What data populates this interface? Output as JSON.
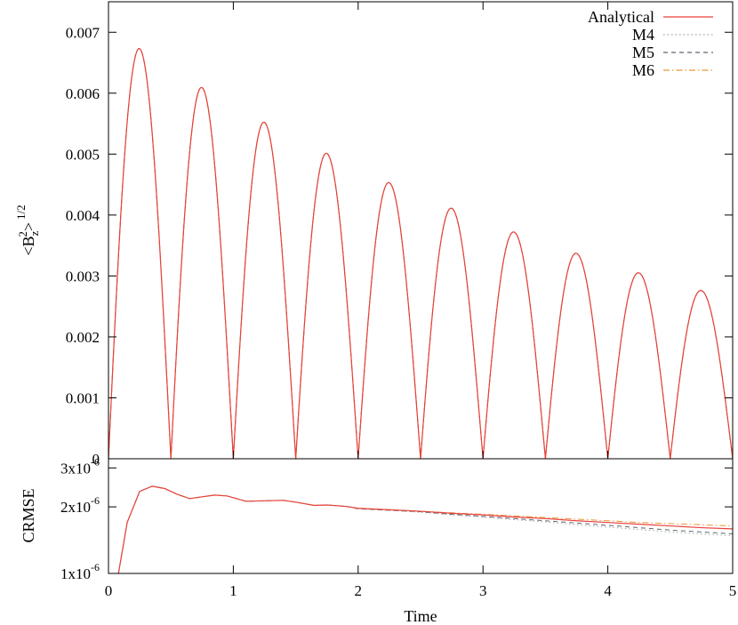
{
  "chart_data": [
    {
      "type": "line",
      "title": "",
      "xlabel": "",
      "ylabel": "<B_z^2>^1/2",
      "ylabel_parts": {
        "open": "<B",
        "sub": "z",
        "sup1": "2",
        "close": ">",
        "sup2": "1/2"
      },
      "xlim": [
        0,
        5
      ],
      "ylim": [
        0,
        0.0075
      ],
      "grid": false,
      "legend": "top-right",
      "y_ticks": [
        {
          "value": 0,
          "label": "0"
        },
        {
          "value": 0.001,
          "label": "0.001"
        },
        {
          "value": 0.002,
          "label": "0.002"
        },
        {
          "value": 0.003,
          "label": "0.003"
        },
        {
          "value": 0.004,
          "label": "0.004"
        },
        {
          "value": 0.005,
          "label": "0.005"
        },
        {
          "value": 0.006,
          "label": "0.006"
        },
        {
          "value": 0.007,
          "label": "0.007"
        }
      ],
      "model": {
        "form": "|A(t) * sin(2*pi*t)|",
        "amplitude_t": [
          0,
          0.25,
          0.75,
          1.25,
          1.75,
          2.25,
          2.75,
          3.25,
          3.75,
          4.25,
          4.75,
          5.0
        ],
        "amplitude_v": [
          0.007,
          0.00673,
          0.00609,
          0.00552,
          0.00501,
          0.00453,
          0.00411,
          0.00372,
          0.00337,
          0.00305,
          0.00276,
          0.00263
        ]
      },
      "peaks": {
        "x": [
          0.25,
          0.75,
          1.25,
          1.75,
          2.25,
          2.75,
          3.25,
          3.75,
          4.25,
          4.75
        ],
        "y": [
          0.00673,
          0.00609,
          0.00552,
          0.00501,
          0.00453,
          0.00411,
          0.00372,
          0.00337,
          0.00305,
          0.00276
        ]
      },
      "series": [
        {
          "name": "Analytical",
          "color": "#e8413a",
          "dash": "solid"
        },
        {
          "name": "M4",
          "color": "#9fa8a8",
          "dash": "dotted"
        },
        {
          "name": "M5",
          "color": "#5d6670",
          "dash": "dashed"
        },
        {
          "name": "M6",
          "color": "#e8963a",
          "dash": "dashdot"
        }
      ]
    },
    {
      "type": "line",
      "title": "",
      "xlabel": "Time",
      "ylabel": "CRMSE",
      "xlim": [
        0,
        5
      ],
      "ylim": [
        1e-06,
        3.3e-06
      ],
      "y_scale": "log",
      "grid": false,
      "x_ticks": [
        {
          "value": 0,
          "label": "0"
        },
        {
          "value": 1,
          "label": "1"
        },
        {
          "value": 2,
          "label": "2"
        },
        {
          "value": 3,
          "label": "3"
        },
        {
          "value": 4,
          "label": "4"
        },
        {
          "value": 5,
          "label": "5"
        }
      ],
      "y_ticks": [
        {
          "value": 1e-06,
          "mantissa": "1x10",
          "exponent": "-6"
        },
        {
          "value": 2e-06,
          "mantissa": "2x10",
          "exponent": "-6"
        },
        {
          "value": 3e-06,
          "mantissa": "3x10",
          "exponent": "-6"
        }
      ],
      "series": [
        {
          "name": "Analytical",
          "color": "#e8413a",
          "dash": "solid",
          "x": [
            0.08,
            0.15,
            0.25,
            0.35,
            0.45,
            0.55,
            0.65,
            0.75,
            0.85,
            0.95,
            1.1,
            1.25,
            1.4,
            1.5,
            1.65,
            1.75,
            1.9,
            2.0,
            2.25,
            2.5,
            2.75,
            3.0,
            3.25,
            3.5,
            3.75,
            4.0,
            4.25,
            4.5,
            4.75,
            5.0
          ],
          "y": [
            1e-06,
            1.7e-06,
            2.35e-06,
            2.48e-06,
            2.42e-06,
            2.28e-06,
            2.18e-06,
            2.22e-06,
            2.26e-06,
            2.24e-06,
            2.12e-06,
            2.13e-06,
            2.14e-06,
            2.1e-06,
            2.03e-06,
            2.04e-06,
            2.01e-06,
            1.97e-06,
            1.94e-06,
            1.91e-06,
            1.87e-06,
            1.84e-06,
            1.8e-06,
            1.77e-06,
            1.73e-06,
            1.7e-06,
            1.67e-06,
            1.64e-06,
            1.61e-06,
            1.59e-06
          ]
        },
        {
          "name": "M4",
          "color": "#9fa8a8",
          "dash": "dotted",
          "x": [
            0.08,
            0.15,
            0.25,
            0.35,
            0.45,
            0.55,
            0.65,
            0.75,
            0.85,
            0.95,
            1.1,
            1.25,
            1.4,
            1.5,
            1.65,
            1.75,
            1.9,
            2.0,
            2.25,
            2.5,
            2.75,
            3.0,
            3.25,
            3.5,
            3.75,
            4.0,
            4.25,
            4.5,
            4.75,
            5.0
          ],
          "y": [
            1e-06,
            1.7e-06,
            2.35e-06,
            2.48e-06,
            2.42e-06,
            2.28e-06,
            2.18e-06,
            2.22e-06,
            2.26e-06,
            2.24e-06,
            2.12e-06,
            2.13e-06,
            2.14e-06,
            2.1e-06,
            2.03e-06,
            2.04e-06,
            2.01e-06,
            1.96e-06,
            1.93e-06,
            1.89e-06,
            1.84e-06,
            1.8e-06,
            1.75e-06,
            1.71e-06,
            1.66e-06,
            1.62e-06,
            1.58e-06,
            1.54e-06,
            1.51e-06,
            1.48e-06
          ]
        },
        {
          "name": "M5",
          "color": "#5d6670",
          "dash": "dashed",
          "x": [
            0.08,
            0.15,
            0.25,
            0.35,
            0.45,
            0.55,
            0.65,
            0.75,
            0.85,
            0.95,
            1.1,
            1.25,
            1.4,
            1.5,
            1.65,
            1.75,
            1.9,
            2.0,
            2.25,
            2.5,
            2.75,
            3.0,
            3.25,
            3.5,
            3.75,
            4.0,
            4.25,
            4.5,
            4.75,
            5.0
          ],
          "y": [
            1e-06,
            1.7e-06,
            2.35e-06,
            2.48e-06,
            2.42e-06,
            2.28e-06,
            2.18e-06,
            2.22e-06,
            2.26e-06,
            2.24e-06,
            2.12e-06,
            2.13e-06,
            2.14e-06,
            2.1e-06,
            2.03e-06,
            2.04e-06,
            2.01e-06,
            1.96e-06,
            1.93e-06,
            1.9e-06,
            1.85e-06,
            1.81e-06,
            1.77e-06,
            1.73e-06,
            1.69e-06,
            1.65e-06,
            1.61e-06,
            1.57e-06,
            1.54e-06,
            1.51e-06
          ]
        },
        {
          "name": "M6",
          "color": "#e8963a",
          "dash": "dashdot",
          "x": [
            0.08,
            0.15,
            0.25,
            0.35,
            0.45,
            0.55,
            0.65,
            0.75,
            0.85,
            0.95,
            1.1,
            1.25,
            1.4,
            1.5,
            1.65,
            1.75,
            1.9,
            2.0,
            2.25,
            2.5,
            2.75,
            3.0,
            3.25,
            3.5,
            3.75,
            4.0,
            4.25,
            4.5,
            4.75,
            5.0
          ],
          "y": [
            1e-06,
            1.7e-06,
            2.35e-06,
            2.48e-06,
            2.42e-06,
            2.28e-06,
            2.18e-06,
            2.22e-06,
            2.26e-06,
            2.24e-06,
            2.12e-06,
            2.13e-06,
            2.14e-06,
            2.1e-06,
            2.03e-06,
            2.04e-06,
            2.01e-06,
            1.97e-06,
            1.94e-06,
            1.91e-06,
            1.88e-06,
            1.85e-06,
            1.82e-06,
            1.79e-06,
            1.76e-06,
            1.73e-06,
            1.7e-06,
            1.68e-06,
            1.66e-06,
            1.64e-06
          ]
        }
      ]
    }
  ]
}
